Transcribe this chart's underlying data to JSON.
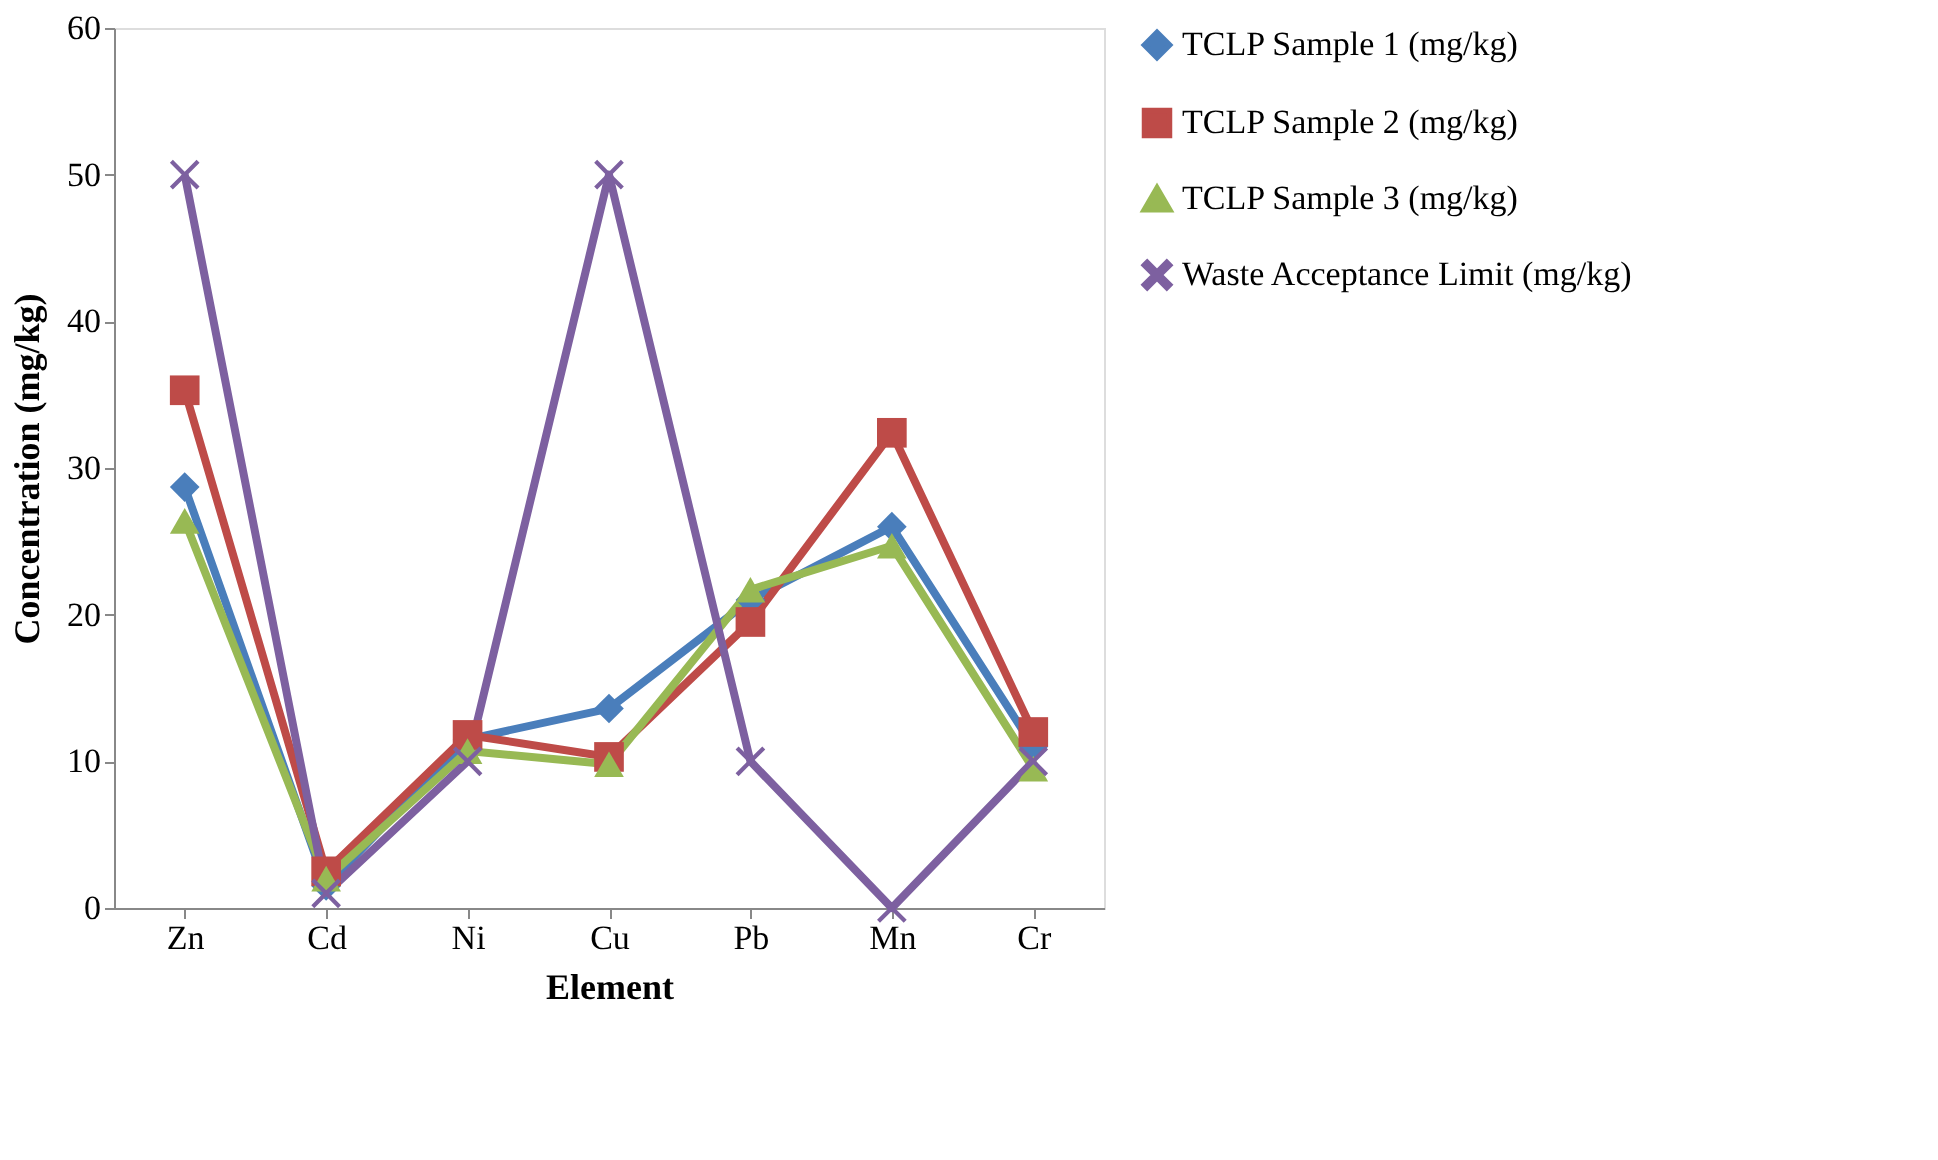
{
  "chart_data": {
    "type": "line",
    "xlabel": "Element",
    "ylabel": "Concentration (mg/kg)",
    "categories": [
      "Zn",
      "Cd",
      "Ni",
      "Cu",
      "Pb",
      "Mn",
      "Cr"
    ],
    "ylim": [
      0,
      60
    ],
    "yticks": [
      0,
      10,
      20,
      30,
      40,
      50,
      60
    ],
    "grid": false,
    "legend": "right",
    "line_style": "solid",
    "series": [
      {
        "name": "TCLP Sample 1 (mg/kg)",
        "color": "#4a7ebb",
        "marker": "diamond",
        "values": [
          28.7,
          1.5,
          11.5,
          13.6,
          21,
          26,
          11
        ]
      },
      {
        "name": "TCLP Sample 2 (mg/kg)",
        "color": "#be4b48",
        "marker": "square",
        "values": [
          35.3,
          2.5,
          11.8,
          10.3,
          19.5,
          32.4,
          12
        ]
      },
      {
        "name": "TCLP Sample 3 (mg/kg)",
        "color": "#98b954",
        "marker": "triangle",
        "values": [
          26.4,
          2,
          10.7,
          9.8,
          21.7,
          24.7,
          9.5
        ]
      },
      {
        "name": "Waste Acceptance Limit (mg/kg)",
        "color": "#7d60a0",
        "marker": "cross",
        "values": [
          50,
          1,
          10,
          50,
          10,
          0,
          10
        ]
      }
    ]
  }
}
